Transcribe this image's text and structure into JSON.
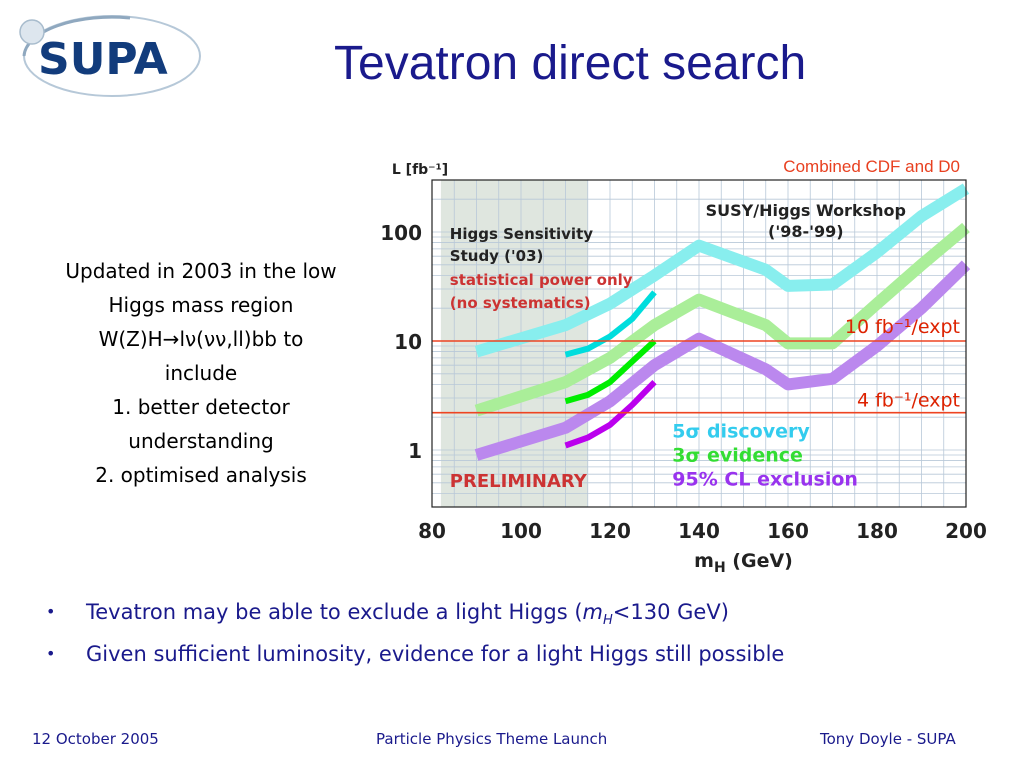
{
  "logo": {
    "text": "SUPA"
  },
  "title": "Tevatron direct search",
  "left_text": {
    "lines": [
      "Updated in 2003 in the low",
      "Higgs mass region",
      "W(Z)H→lν(νν,ll)bb to",
      "include",
      "1. better detector",
      "understanding",
      "2. optimised analysis"
    ]
  },
  "chart_data": {
    "type": "line",
    "ylabel": "L [fb⁻¹]",
    "xlabel": "m",
    "xlabel_sub": "H",
    "xlabel_unit": "(GeV)",
    "x_ticks": [
      "80",
      "100",
      "120",
      "140",
      "160",
      "180",
      "200"
    ],
    "y_ticks": [
      "100",
      "10",
      "1"
    ],
    "xlim": [
      80,
      200
    ],
    "ylim": [
      0.3,
      300
    ],
    "y_scale": "log",
    "grid": true,
    "shaded_region_x": [
      82,
      115
    ],
    "annotations": {
      "combined": "Combined CDF and D0",
      "workshop_1": "SUSY/Higgs Workshop",
      "workshop_2": "('98-'99)",
      "study_1": "Higgs Sensitivity",
      "study_2": "Study ('03)",
      "study_3": "statistical power only",
      "study_4": "(no systematics)",
      "preliminary": "PRELIMINARY",
      "line10_label": "10 fb⁻¹/expt",
      "line4_label": "4 fb⁻¹/expt"
    },
    "hlines": [
      10,
      2.2
    ],
    "legend": [
      {
        "sym": "5",
        "greek": "σ",
        "text": " discovery",
        "color": "#33ccee"
      },
      {
        "sym": "3",
        "greek": "σ",
        "text": " evidence",
        "color": "#33dd33"
      },
      {
        "sym": "95% CL",
        "greek": "",
        "text": " exclusion",
        "color": "#9933ee"
      }
    ],
    "series": [
      {
        "name": "5σ discovery",
        "color": "#88eeee",
        "x": [
          90,
          110,
          120,
          130,
          140,
          155,
          160,
          170,
          180,
          190,
          200
        ],
        "y": [
          8,
          14,
          22,
          40,
          75,
          45,
          32,
          33,
          65,
          140,
          250
        ]
      },
      {
        "name": "3σ evidence",
        "color": "#aaee99",
        "x": [
          90,
          110,
          120,
          130,
          140,
          155,
          160,
          170,
          180,
          190,
          200
        ],
        "y": [
          2.3,
          4.2,
          7,
          14,
          24,
          14,
          9.5,
          9.5,
          22,
          50,
          110
        ]
      },
      {
        "name": "95% CL exclusion",
        "color": "#bb88ee",
        "x": [
          90,
          110,
          120,
          130,
          140,
          155,
          160,
          170,
          180,
          190,
          200
        ],
        "y": [
          0.9,
          1.6,
          2.8,
          6,
          10.5,
          5.5,
          4,
          4.5,
          9,
          20,
          50
        ]
      }
    ],
    "study_series": [
      {
        "color": "#00dddd",
        "x": [
          110,
          115,
          120,
          125,
          130
        ],
        "y": [
          7.5,
          8.5,
          11,
          16,
          28
        ]
      },
      {
        "color": "#00ee00",
        "x": [
          110,
          115,
          120,
          125,
          130
        ],
        "y": [
          2.8,
          3.2,
          4.2,
          6.5,
          10
        ]
      },
      {
        "color": "#bb00ee",
        "x": [
          110,
          115,
          120,
          125,
          130
        ],
        "y": [
          1.1,
          1.3,
          1.7,
          2.6,
          4.2
        ]
      }
    ]
  },
  "bullets": [
    {
      "pre": "Tevatron may be able to exclude a light Higgs (",
      "em": "m",
      "sub": "H",
      "post": "<130 GeV)"
    },
    {
      "pre": "Given sufficient luminosity, evidence for a light Higgs still possible",
      "em": "",
      "sub": "",
      "post": ""
    }
  ],
  "bullet_symbol": "•",
  "footer": {
    "date": "12 October 2005",
    "event": "Particle Physics Theme Launch",
    "author": "Tony Doyle - SUPA"
  }
}
